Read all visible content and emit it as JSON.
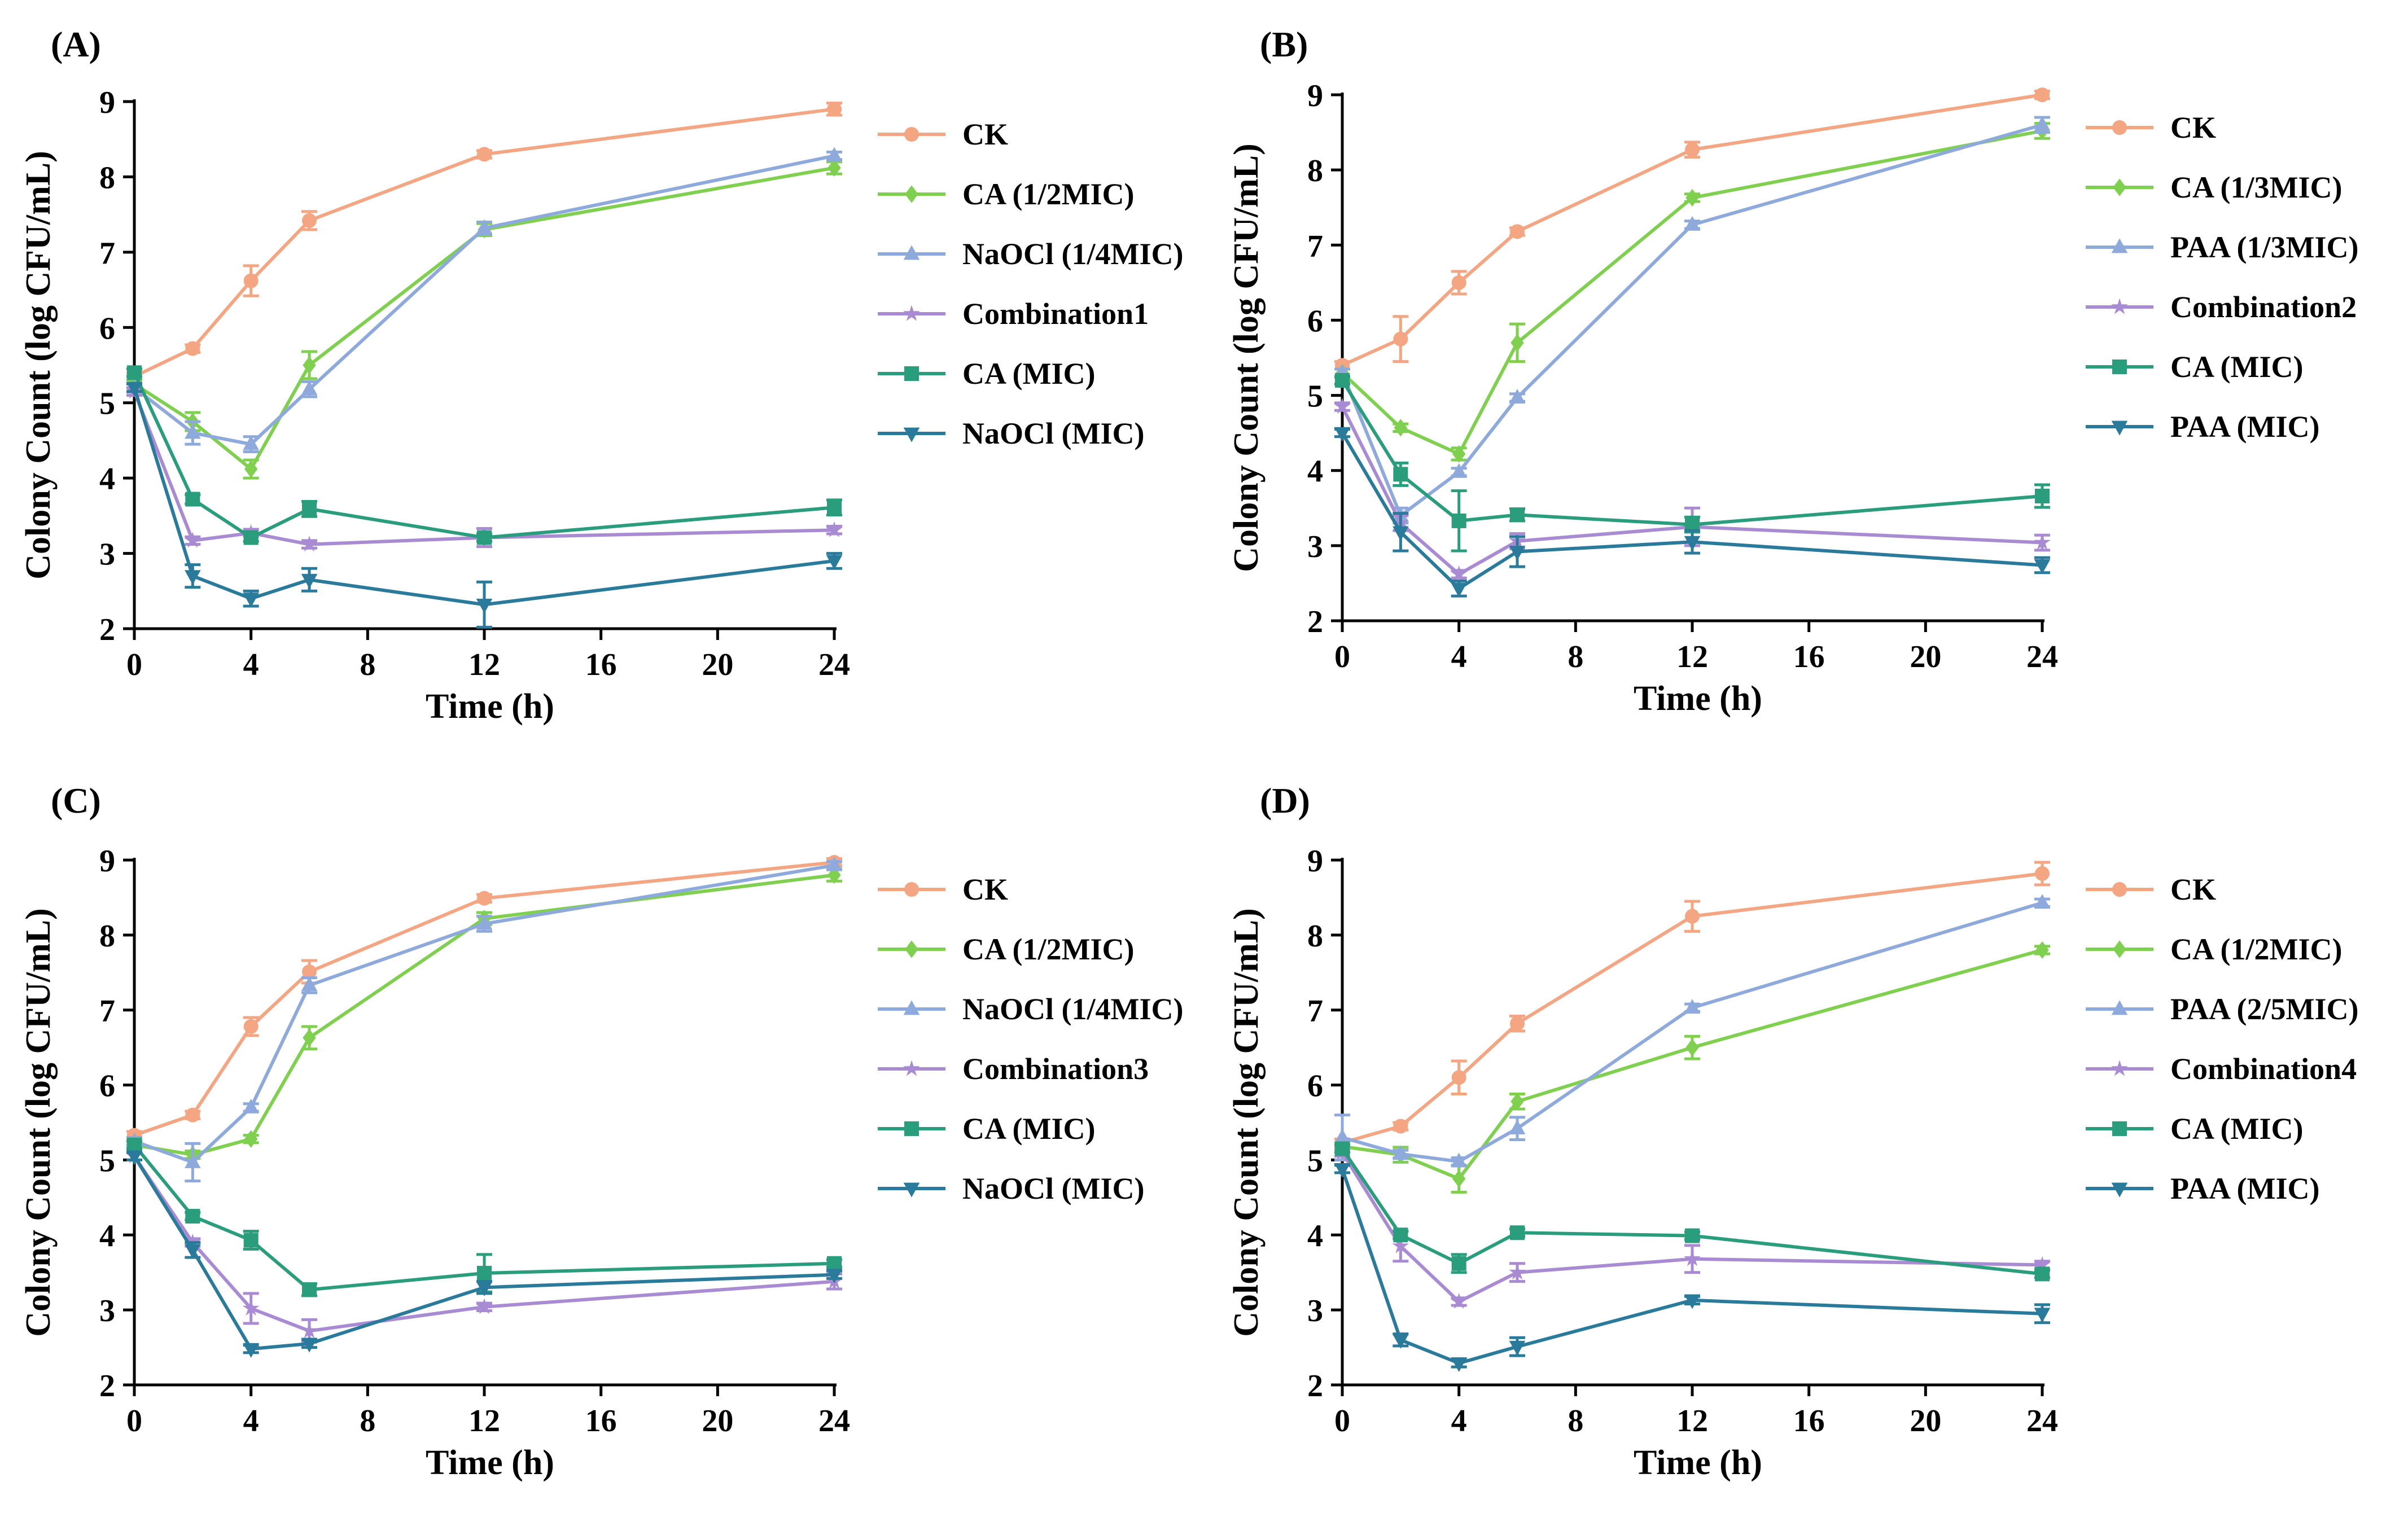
{
  "figure": {
    "x_ticks": [
      "0",
      "4",
      "8",
      "12",
      "16",
      "20",
      "24"
    ],
    "y_ticks": [
      "2",
      "3",
      "4",
      "5",
      "6",
      "7",
      "8",
      "9"
    ]
  },
  "chart_data": [
    {
      "type": "line",
      "panel_label": "(A)",
      "xlabel": "Time (h)",
      "ylabel": "Colony Count (log CFU/mL)",
      "xlim": [
        0,
        24
      ],
      "ylim": [
        2,
        9
      ],
      "x": [
        0,
        2,
        4,
        6,
        12,
        24
      ],
      "series": [
        {
          "name": "CK",
          "color": "#F4A582",
          "marker": "circle",
          "values": [
            5.35,
            5.72,
            6.62,
            7.42,
            8.3,
            8.9
          ],
          "errors": [
            0.05,
            0.05,
            0.2,
            0.12,
            0.05,
            0.08
          ]
        },
        {
          "name": "CA (1/2MIC)",
          "color": "#7FD04E",
          "marker": "diamond",
          "values": [
            5.25,
            4.75,
            4.12,
            5.5,
            7.3,
            8.12
          ],
          "errors": [
            0.05,
            0.12,
            0.12,
            0.18,
            0.08,
            0.08
          ]
        },
        {
          "name": "NaOCl (1/4MIC)",
          "color": "#8EA9DB",
          "marker": "triangle-up",
          "values": [
            5.2,
            4.6,
            4.45,
            5.18,
            7.32,
            8.28
          ],
          "errors": [
            0.05,
            0.15,
            0.1,
            0.1,
            0.08,
            0.05
          ]
        },
        {
          "name": "Combination1",
          "color": "#A98BD4",
          "marker": "star",
          "values": [
            5.15,
            3.17,
            3.27,
            3.12,
            3.21,
            3.31
          ],
          "errors": [
            0.05,
            0.05,
            0.05,
            0.05,
            0.12,
            0.05
          ]
        },
        {
          "name": "CA (MIC)",
          "color": "#2A9D7C",
          "marker": "square",
          "values": [
            5.4,
            3.72,
            3.21,
            3.59,
            3.21,
            3.61
          ],
          "errors": [
            0.05,
            0.06,
            0.05,
            0.1,
            0.05,
            0.1
          ]
        },
        {
          "name": "NaOCl (MIC)",
          "color": "#2A7A9C",
          "marker": "triangle-down",
          "values": [
            5.2,
            2.7,
            2.4,
            2.65,
            2.32,
            2.9
          ],
          "errors": [
            0.05,
            0.15,
            0.1,
            0.15,
            0.3,
            0.1
          ]
        }
      ]
    },
    {
      "type": "line",
      "panel_label": "(B)",
      "xlabel": "Time (h)",
      "ylabel": "Colony Count (log CFU/mL)",
      "xlim": [
        0,
        24
      ],
      "ylim": [
        2,
        9
      ],
      "x": [
        0,
        2,
        4,
        6,
        12,
        24
      ],
      "series": [
        {
          "name": "CK",
          "color": "#F4A582",
          "marker": "circle",
          "values": [
            5.4,
            5.75,
            6.5,
            7.18,
            8.27,
            9.0
          ],
          "errors": [
            0.05,
            0.3,
            0.15,
            0.05,
            0.1,
            0.05
          ]
        },
        {
          "name": "CA (1/3MIC)",
          "color": "#7FD04E",
          "marker": "diamond",
          "values": [
            5.3,
            4.57,
            4.22,
            5.7,
            7.63,
            8.52
          ],
          "errors": [
            0.05,
            0.05,
            0.08,
            0.25,
            0.05,
            0.1
          ]
        },
        {
          "name": "PAA (1/3MIC)",
          "color": "#8EA9DB",
          "marker": "triangle-up",
          "values": [
            5.3,
            3.4,
            3.98,
            4.97,
            7.27,
            8.6
          ],
          "errors": [
            0.05,
            0.1,
            0.05,
            0.05,
            0.05,
            0.1
          ]
        },
        {
          "name": "Combination2",
          "color": "#A98BD4",
          "marker": "star",
          "values": [
            4.85,
            3.3,
            2.62,
            3.06,
            3.25,
            3.04
          ],
          "errors": [
            0.05,
            0.1,
            0.05,
            0.1,
            0.25,
            0.1
          ]
        },
        {
          "name": "CA (MIC)",
          "color": "#2A9D7C",
          "marker": "square",
          "values": [
            5.2,
            3.95,
            3.33,
            3.41,
            3.28,
            3.66
          ],
          "errors": [
            0.05,
            0.15,
            0.4,
            0.08,
            0.1,
            0.15
          ]
        },
        {
          "name": "PAA (MIC)",
          "color": "#2A7A9C",
          "marker": "triangle-down",
          "values": [
            4.5,
            3.18,
            2.43,
            2.92,
            3.05,
            2.74
          ],
          "errors": [
            0.05,
            0.25,
            0.1,
            0.2,
            0.15,
            0.1
          ]
        }
      ]
    },
    {
      "type": "line",
      "panel_label": "(C)",
      "xlabel": "Time (h)",
      "ylabel": "Colony Count (log CFU/mL)",
      "xlim": [
        0,
        24
      ],
      "ylim": [
        2,
        9
      ],
      "x": [
        0,
        2,
        4,
        6,
        12,
        24
      ],
      "series": [
        {
          "name": "CK",
          "color": "#F4A582",
          "marker": "circle",
          "values": [
            5.33,
            5.6,
            6.78,
            7.51,
            8.49,
            8.97
          ],
          "errors": [
            0.05,
            0.05,
            0.12,
            0.15,
            0.05,
            0.05
          ]
        },
        {
          "name": "CA (1/2MIC)",
          "color": "#7FD04E",
          "marker": "diamond",
          "values": [
            5.2,
            5.07,
            5.28,
            6.63,
            8.22,
            8.8
          ],
          "errors": [
            0.05,
            0.05,
            0.05,
            0.15,
            0.08,
            0.08
          ]
        },
        {
          "name": "NaOCl (1/4MIC)",
          "color": "#8EA9DB",
          "marker": "triangle-up",
          "values": [
            5.25,
            4.97,
            5.7,
            7.33,
            8.15,
            8.93
          ],
          "errors": [
            0.05,
            0.25,
            0.05,
            0.1,
            0.1,
            0.05
          ]
        },
        {
          "name": "Combination3",
          "color": "#A98BD4",
          "marker": "star",
          "values": [
            5.05,
            3.9,
            3.02,
            2.72,
            3.04,
            3.38
          ],
          "errors": [
            0.05,
            0.05,
            0.2,
            0.15,
            0.05,
            0.1
          ]
        },
        {
          "name": "CA (MIC)",
          "color": "#2A9D7C",
          "marker": "square",
          "values": [
            5.2,
            4.25,
            3.93,
            3.27,
            3.49,
            3.62
          ],
          "errors": [
            0.05,
            0.05,
            0.12,
            0.08,
            0.25,
            0.05
          ]
        },
        {
          "name": "NaOCl (MIC)",
          "color": "#2A7A9C",
          "marker": "triangle-down",
          "values": [
            5.05,
            3.8,
            2.48,
            2.55,
            3.3,
            3.47
          ],
          "errors": [
            0.05,
            0.1,
            0.05,
            0.05,
            0.08,
            0.05
          ]
        }
      ]
    },
    {
      "type": "line",
      "panel_label": "(D)",
      "xlabel": "Time (h)",
      "ylabel": "Colony Count (log CFU/mL)",
      "xlim": [
        0,
        24
      ],
      "ylim": [
        2,
        9
      ],
      "x": [
        0,
        2,
        4,
        6,
        12,
        24
      ],
      "series": [
        {
          "name": "CK",
          "color": "#F4A582",
          "marker": "circle",
          "values": [
            5.23,
            5.45,
            6.1,
            6.82,
            8.25,
            8.82
          ],
          "errors": [
            0.05,
            0.05,
            0.22,
            0.1,
            0.2,
            0.15
          ]
        },
        {
          "name": "CA (1/2MIC)",
          "color": "#7FD04E",
          "marker": "diamond",
          "values": [
            5.18,
            5.07,
            4.75,
            5.78,
            6.5,
            7.8
          ],
          "errors": [
            0.05,
            0.1,
            0.18,
            0.1,
            0.15,
            0.05
          ]
        },
        {
          "name": "PAA (2/5MIC)",
          "color": "#8EA9DB",
          "marker": "triangle-up",
          "values": [
            5.3,
            5.08,
            4.98,
            5.42,
            7.03,
            8.43
          ],
          "errors": [
            0.3,
            0.05,
            0.05,
            0.15,
            0.05,
            0.05
          ]
        },
        {
          "name": "Combination4",
          "color": "#A98BD4",
          "marker": "star",
          "values": [
            5.1,
            3.85,
            3.11,
            3.5,
            3.68,
            3.6
          ],
          "errors": [
            0.05,
            0.2,
            0.05,
            0.12,
            0.18,
            0.05
          ]
        },
        {
          "name": "CA (MIC)",
          "color": "#2A9D7C",
          "marker": "square",
          "values": [
            5.15,
            4.0,
            3.62,
            4.03,
            3.99,
            3.48
          ],
          "errors": [
            0.05,
            0.05,
            0.12,
            0.05,
            0.05,
            0.05
          ]
        },
        {
          "name": "PAA (MIC)",
          "color": "#2A7A9C",
          "marker": "triangle-down",
          "values": [
            4.88,
            2.6,
            2.29,
            2.51,
            3.13,
            2.95
          ],
          "errors": [
            0.05,
            0.08,
            0.05,
            0.12,
            0.05,
            0.12
          ]
        }
      ]
    }
  ]
}
